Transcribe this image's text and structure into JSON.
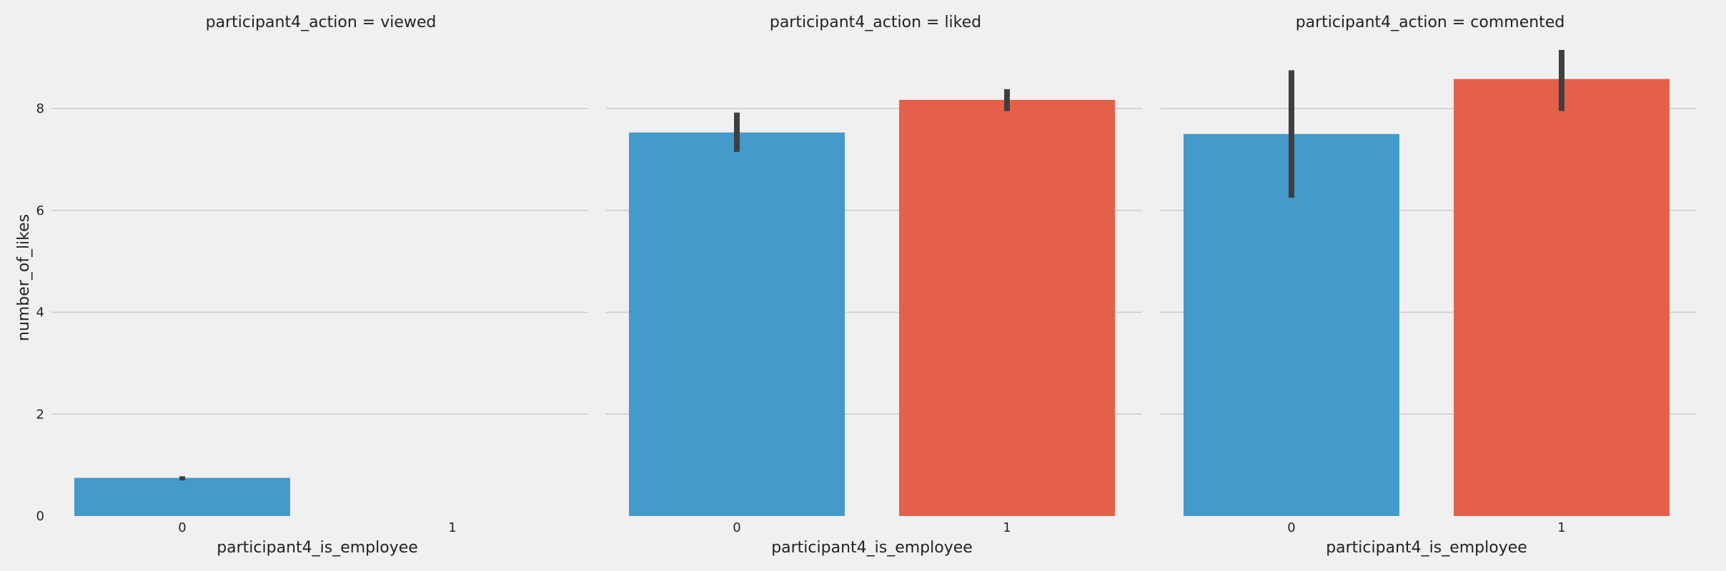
{
  "chart_data": {
    "type": "bar",
    "x_label": "participant4_is_employee",
    "y_label": "number_of_likes",
    "categories": [
      "0",
      "1"
    ],
    "y_ticks": [
      "0",
      "2",
      "4",
      "6",
      "8"
    ],
    "ylim": [
      0,
      9.5
    ],
    "grid": true,
    "colors": {
      "0": "#449acb",
      "1": "#e5604a",
      "errorbar": "#3f3f3f",
      "background": "#f0f0f0",
      "grid": "#cbcbcb"
    },
    "panels": [
      {
        "title": "participant4_action = viewed",
        "bars": [
          {
            "category": "0",
            "value": 0.75,
            "ci": [
              0.7,
              0.78
            ]
          },
          {
            "category": "1",
            "value": null,
            "ci": null
          }
        ]
      },
      {
        "title": "participant4_action = liked",
        "bars": [
          {
            "category": "0",
            "value": 7.53,
            "ci": [
              7.15,
              7.92
            ]
          },
          {
            "category": "1",
            "value": 8.17,
            "ci": [
              7.95,
              8.38
            ]
          }
        ]
      },
      {
        "title": "participant4_action = commented",
        "bars": [
          {
            "category": "0",
            "value": 7.5,
            "ci": [
              6.25,
              8.75
            ]
          },
          {
            "category": "1",
            "value": 8.58,
            "ci": [
              7.95,
              9.15
            ]
          }
        ]
      }
    ]
  }
}
